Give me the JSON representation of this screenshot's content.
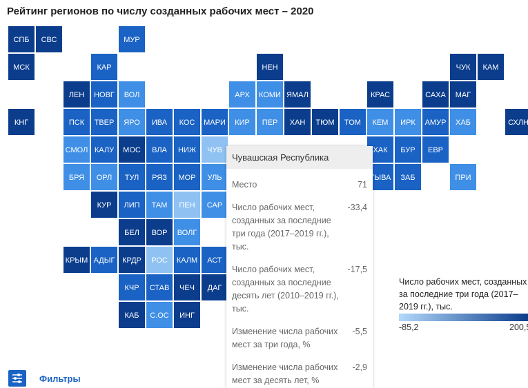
{
  "header": {
    "title": "Рейтинг регионов по числу созданных рабочих мест – 2020"
  },
  "tiles": [
    {
      "label": "СПБ",
      "color": "#0b3d8c"
    },
    {
      "label": "СВС",
      "color": "#0b3d8c"
    },
    {
      "label": "МУР",
      "color": "#1a62c4"
    },
    {
      "label": "МСК",
      "color": "#0b3d8c"
    },
    {
      "label": "КАР",
      "color": "#1a62c4"
    },
    {
      "label": "НЕН",
      "color": "#0b3d8c"
    },
    {
      "label": "ЧУК",
      "color": "#0b3d8c"
    },
    {
      "label": "КАМ",
      "color": "#0b3d8c"
    },
    {
      "label": "ЛЕН",
      "color": "#0b3d8c"
    },
    {
      "label": "НОВГ",
      "color": "#1a62c4"
    },
    {
      "label": "ВОЛ",
      "color": "#3f8fe6"
    },
    {
      "label": "АРХ",
      "color": "#3f8fe6"
    },
    {
      "label": "КОМИ",
      "color": "#3f8fe6"
    },
    {
      "label": "ЯМАЛ",
      "color": "#0b3d8c"
    },
    {
      "label": "КРАС",
      "color": "#0b3d8c"
    },
    {
      "label": "САХА",
      "color": "#0b3d8c"
    },
    {
      "label": "МАГ",
      "color": "#0b3d8c"
    },
    {
      "label": "КНГ",
      "color": "#0b3d8c"
    },
    {
      "label": "ПСК",
      "color": "#1a62c4"
    },
    {
      "label": "ТВЕР",
      "color": "#1a62c4"
    },
    {
      "label": "ЯРО",
      "color": "#3f8fe6"
    },
    {
      "label": "ИВА",
      "color": "#1a62c4"
    },
    {
      "label": "КОС",
      "color": "#1a62c4"
    },
    {
      "label": "МАРИ",
      "color": "#1a62c4"
    },
    {
      "label": "КИР",
      "color": "#3f8fe6"
    },
    {
      "label": "ПЕР",
      "color": "#3f8fe6"
    },
    {
      "label": "ХАН",
      "color": "#0b3d8c"
    },
    {
      "label": "ТЮМ",
      "color": "#0b3d8c"
    },
    {
      "label": "ТОМ",
      "color": "#1a62c4"
    },
    {
      "label": "КЕМ",
      "color": "#3f8fe6"
    },
    {
      "label": "ИРК",
      "color": "#3f8fe6"
    },
    {
      "label": "АМУР",
      "color": "#1a62c4"
    },
    {
      "label": "ХАБ",
      "color": "#3f8fe6"
    },
    {
      "label": "СХЛН",
      "color": "#0b3d8c"
    },
    {
      "label": "СМОЛ",
      "color": "#3f8fe6"
    },
    {
      "label": "КАЛУ",
      "color": "#1a62c4"
    },
    {
      "label": "МОС",
      "color": "#0b3d8c"
    },
    {
      "label": "ВЛА",
      "color": "#1a62c4"
    },
    {
      "label": "НИЖ",
      "color": "#1a62c4"
    },
    {
      "label": "ЧУВ",
      "color": "#8fc2f3"
    },
    {
      "label": "ХАК",
      "color": "#1a62c4"
    },
    {
      "label": "БУР",
      "color": "#1a62c4"
    },
    {
      "label": "ЕВР",
      "color": "#1a62c4"
    },
    {
      "label": "БРЯ",
      "color": "#3f8fe6"
    },
    {
      "label": "ОРЛ",
      "color": "#3f8fe6"
    },
    {
      "label": "ТУЛ",
      "color": "#1a62c4"
    },
    {
      "label": "РЯЗ",
      "color": "#1a62c4"
    },
    {
      "label": "МОР",
      "color": "#1a62c4"
    },
    {
      "label": "УЛЬ",
      "color": "#3f8fe6"
    },
    {
      "label": "ТЫВА",
      "color": "#1a62c4"
    },
    {
      "label": "ЗАБ",
      "color": "#1a62c4"
    },
    {
      "label": "ПРИ",
      "color": "#3f8fe6"
    },
    {
      "label": "КУР",
      "color": "#0b3d8c"
    },
    {
      "label": "ЛИП",
      "color": "#1a62c4"
    },
    {
      "label": "ТАМ",
      "color": "#3f8fe6"
    },
    {
      "label": "ПЕН",
      "color": "#8fc2f3"
    },
    {
      "label": "САР",
      "color": "#3f8fe6"
    },
    {
      "label": "БЕЛ",
      "color": "#0b3d8c"
    },
    {
      "label": "ВОР",
      "color": "#0b3d8c"
    },
    {
      "label": "ВОЛГ",
      "color": "#3f8fe6"
    },
    {
      "label": "КРЫМ",
      "color": "#0b3d8c"
    },
    {
      "label": "АДЫГ",
      "color": "#1a62c4"
    },
    {
      "label": "КРДР",
      "color": "#0b3d8c"
    },
    {
      "label": "РОС",
      "color": "#8fc2f3"
    },
    {
      "label": "КАЛМ",
      "color": "#1a62c4"
    },
    {
      "label": "АСТ",
      "color": "#1a62c4"
    },
    {
      "label": "КЧР",
      "color": "#1a62c4"
    },
    {
      "label": "СТАВ",
      "color": "#1a62c4"
    },
    {
      "label": "ЧЕЧ",
      "color": "#0b3d8c"
    },
    {
      "label": "ДАГ",
      "color": "#0b3d8c"
    },
    {
      "label": "КАБ",
      "color": "#0b3d8c"
    },
    {
      "label": "С.ОС",
      "color": "#3f8fe6"
    },
    {
      "label": "ИНГ",
      "color": "#0b3d8c"
    }
  ],
  "tooltip": {
    "title": "Чувашская Республика",
    "rows": [
      {
        "label": "Место",
        "value": "71"
      },
      {
        "label": "Число рабочих мест, созданных за последние три года (2017–2019 гг.), тыс.",
        "value": "-33,4"
      },
      {
        "label": "Число рабочих мест, созданных за последние десять лет (2010–2019 гг.), тыс.",
        "value": "-17,5"
      },
      {
        "label": "Изменение числа рабочих мест за три года, %",
        "value": "-5,5"
      },
      {
        "label": "Изменение числа рабочих мест за десять лет, %",
        "value": "-2,9"
      }
    ]
  },
  "legend": {
    "title": "Число рабочих мест, созданных за последние три года (2017–2019 гг.), тыс.",
    "min": "-85,2",
    "max": "200,5",
    "color_min": "#b3d9fb",
    "color_max": "#0b3d8c"
  },
  "filters": {
    "label": "Фильтры"
  }
}
